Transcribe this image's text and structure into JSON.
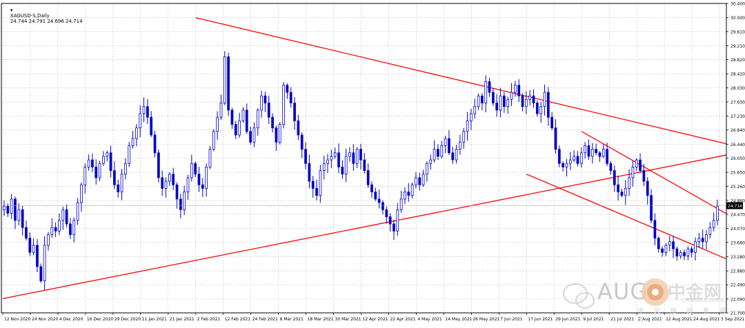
{
  "header": {
    "symbol": "XAGUSD-S,Daily",
    "ohlc": "24.744 24.791 24.696 24.714"
  },
  "colors": {
    "candle": "#0000c8",
    "trendline": "#ff0000",
    "grid": "#c0c0c0",
    "price_tag_bg": "#000000"
  },
  "chart_data": {
    "type": "candlestick",
    "title": "",
    "xlabel": "",
    "ylabel": "",
    "ylim": [
      21.7,
      30.4
    ],
    "yticks": [
      "30.400",
      "30.000",
      "29.610",
      "29.210",
      "28.820",
      "28.420",
      "28.030",
      "27.630",
      "27.230",
      "26.840",
      "26.440",
      "26.050",
      "25.650",
      "25.260",
      "24.860",
      "24.470",
      "24.070",
      "23.680",
      "23.280",
      "22.880",
      "22.490",
      "22.090",
      "21.700"
    ],
    "x_dates": [
      "12 Nov 2020",
      "24 Nov 2020",
      "4 Dec 2020",
      "16 Dec 2020",
      "29 Dec 2020",
      "11 Jan 2021",
      "21 Jan 2021",
      "2 Feb 2021",
      "12 Feb 2021",
      "24 Feb 2021",
      "8 Mar 2021",
      "18 Mar 2021",
      "30 Mar 2021",
      "12 Apr 2021",
      "22 Apr 2021",
      "4 May 2021",
      "14 May 2021",
      "26 May 2021",
      "7 Jun 2021",
      "17 Jun 2021",
      "29 Jun 2021",
      "9 Jul 2021",
      "21 Jul 2021",
      "2 Aug 2021",
      "12 Aug 2021",
      "24 Aug 2021",
      "3 Sep 2021"
    ],
    "current_price": "24.714",
    "grid": true,
    "series": [
      {
        "closes": [
          24.7,
          24.5,
          24.9,
          24.3,
          24.6,
          24.1,
          23.8,
          23.4,
          23.6,
          23.0,
          22.6,
          23.6,
          23.9,
          24.1,
          24.0,
          24.3,
          24.6,
          24.2,
          23.9,
          24.3,
          24.8,
          25.3,
          25.8,
          26.0,
          25.8,
          25.5,
          25.9,
          26.1,
          26.2,
          25.7,
          25.3,
          25.1,
          25.6,
          25.9,
          26.4,
          26.6,
          26.9,
          27.3,
          27.5,
          27.2,
          26.7,
          26.2,
          25.5,
          25.2,
          25.4,
          25.6,
          25.3,
          24.9,
          24.6,
          25.1,
          25.5,
          25.9,
          25.6,
          25.3,
          25.2,
          25.8,
          26.3,
          26.8,
          27.2,
          27.6,
          28.9,
          27.4,
          27.0,
          26.7,
          27.1,
          27.4,
          26.8,
          26.5,
          26.9,
          27.4,
          27.8,
          27.6,
          27.2,
          26.9,
          26.5,
          27.0,
          28.1,
          27.9,
          27.6,
          27.1,
          26.7,
          26.3,
          25.9,
          25.4,
          25.2,
          25.0,
          25.7,
          25.9,
          26.0,
          26.1,
          26.2,
          25.8,
          25.6,
          26.1,
          26.2,
          25.9,
          26.3,
          26.0,
          25.7,
          25.3,
          25.1,
          24.9,
          24.8,
          24.6,
          24.4,
          24.2,
          24.0,
          24.6,
          24.9,
          25.1,
          25.0,
          25.3,
          25.5,
          25.3,
          25.6,
          25.9,
          26.0,
          26.3,
          26.1,
          26.4,
          26.6,
          26.2,
          26.0,
          26.3,
          26.5,
          26.8,
          27.1,
          27.3,
          27.5,
          27.8,
          27.6,
          28.2,
          27.9,
          27.6,
          27.4,
          27.8,
          27.5,
          27.7,
          27.9,
          28.1,
          27.8,
          27.5,
          27.7,
          27.8,
          27.6,
          27.3,
          27.5,
          27.9,
          27.2,
          26.9,
          26.3,
          25.9,
          25.8,
          25.9,
          26.0,
          26.1,
          25.9,
          26.2,
          26.4,
          26.1,
          26.3,
          26.2,
          26.1,
          26.3,
          25.9,
          25.7,
          25.3,
          25.1,
          25.0,
          25.2,
          25.5,
          25.8,
          26.0,
          25.7,
          25.4,
          25.0,
          24.3,
          23.8,
          23.5,
          23.4,
          23.6,
          23.7,
          23.5,
          23.3,
          23.4,
          23.3,
          23.5,
          23.4,
          23.7,
          23.8,
          23.7,
          23.9,
          24.1,
          24.3,
          24.7
        ]
      }
    ],
    "trendlines": [
      {
        "name": "upper-descending",
        "from": {
          "date": "2 Feb 2021",
          "price": 30.0
        },
        "to": {
          "date": "3 Sep 2021",
          "price": 26.5
        }
      },
      {
        "name": "lower-ascending",
        "from": {
          "date": "12 Nov 2020",
          "price": 22.1
        },
        "to": {
          "date": "3 Sep 2021",
          "price": 26.1
        }
      },
      {
        "name": "channel-upper",
        "from": {
          "date": "9 Jul 2021",
          "price": 26.8
        },
        "to": {
          "date": "3 Sep 2021",
          "price": 24.6
        }
      },
      {
        "name": "channel-lower",
        "from": {
          "date": "17 Jun 2021",
          "price": 25.6
        },
        "to": {
          "date": "3 Sep 2021",
          "price": 23.3
        }
      }
    ]
  },
  "watermark": {
    "brand": "AUG",
    "logo_text": "中金网",
    "site": "CNGOLD.COM.CN",
    "subtitle": "中 文 财 经 新 闻 网"
  }
}
